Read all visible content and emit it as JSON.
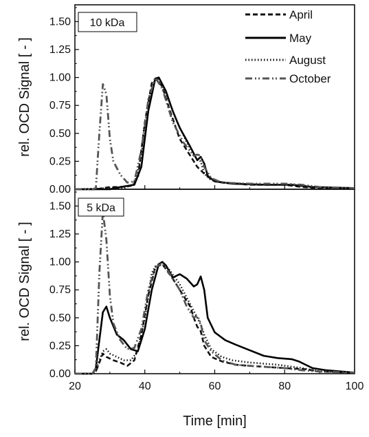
{
  "chart_data": {
    "type": "line",
    "xlabel": "Time [min]",
    "ylabel": "rel. OCD Signal [ - ]",
    "xlim": [
      20,
      100
    ],
    "ylim": [
      0,
      1.65
    ],
    "xticks": [
      "20",
      "40",
      "60",
      "80",
      "100"
    ],
    "yticks": [
      "0.00",
      "0.25",
      "0.50",
      "0.75",
      "1.00",
      "1.25",
      "1.50"
    ],
    "legend": {
      "placement": "top-right",
      "entries": [
        {
          "name": "April",
          "style": "dashed"
        },
        {
          "name": "May",
          "style": "solid"
        },
        {
          "name": "August",
          "style": "dotted"
        },
        {
          "name": "October",
          "style": "dash-dot-dot"
        }
      ]
    },
    "colors": {
      "April": "#111111",
      "May": "#000000",
      "August": "#111111",
      "October": "#555555"
    },
    "panels": [
      {
        "label": "10 kDa",
        "series": [
          {
            "name": "April",
            "points": [
              [
                20,
                0
              ],
              [
                26,
                0
              ],
              [
                28,
                0.01
              ],
              [
                30,
                0.02
              ],
              [
                33,
                0.02
              ],
              [
                36,
                0.03
              ],
              [
                38,
                0.1
              ],
              [
                40,
                0.6
              ],
              [
                42,
                0.95
              ],
              [
                43,
                0.99
              ],
              [
                45,
                0.92
              ],
              [
                47,
                0.72
              ],
              [
                50,
                0.45
              ],
              [
                53,
                0.3
              ],
              [
                55,
                0.2
              ],
              [
                57,
                0.14
              ],
              [
                59,
                0.09
              ],
              [
                62,
                0.06
              ],
              [
                70,
                0.04
              ],
              [
                80,
                0.04
              ],
              [
                85,
                0.02
              ],
              [
                90,
                0.01
              ],
              [
                100,
                0.01
              ]
            ]
          },
          {
            "name": "May",
            "points": [
              [
                20,
                0
              ],
              [
                30,
                0
              ],
              [
                33,
                0.02
              ],
              [
                37,
                0.04
              ],
              [
                39,
                0.2
              ],
              [
                41,
                0.7
              ],
              [
                43,
                0.99
              ],
              [
                44,
                1.0
              ],
              [
                46,
                0.88
              ],
              [
                48,
                0.7
              ],
              [
                50,
                0.55
              ],
              [
                53,
                0.38
              ],
              [
                55,
                0.26
              ],
              [
                56,
                0.29
              ],
              [
                57,
                0.23
              ],
              [
                58,
                0.12
              ],
              [
                60,
                0.07
              ],
              [
                65,
                0.05
              ],
              [
                75,
                0.04
              ],
              [
                82,
                0.04
              ],
              [
                88,
                0.02
              ],
              [
                100,
                0.01
              ]
            ]
          },
          {
            "name": "August",
            "points": [
              [
                20,
                0
              ],
              [
                30,
                0.01
              ],
              [
                34,
                0.01
              ],
              [
                37,
                0.05
              ],
              [
                39,
                0.3
              ],
              [
                41,
                0.8
              ],
              [
                43,
                0.99
              ],
              [
                44,
                0.98
              ],
              [
                46,
                0.86
              ],
              [
                49,
                0.62
              ],
              [
                52,
                0.42
              ],
              [
                54,
                0.3
              ],
              [
                56,
                0.25
              ],
              [
                57,
                0.14
              ],
              [
                59,
                0.08
              ],
              [
                63,
                0.06
              ],
              [
                72,
                0.04
              ],
              [
                82,
                0.04
              ],
              [
                90,
                0.02
              ],
              [
                100,
                0.01
              ]
            ]
          },
          {
            "name": "October",
            "points": [
              [
                20,
                0
              ],
              [
                25,
                0
              ],
              [
                26,
                0.01
              ],
              [
                27,
                0.5
              ],
              [
                28,
                0.94
              ],
              [
                29,
                0.85
              ],
              [
                30,
                0.45
              ],
              [
                31,
                0.25
              ],
              [
                33,
                0.13
              ],
              [
                35,
                0.06
              ],
              [
                37,
                0.07
              ],
              [
                39,
                0.35
              ],
              [
                41,
                0.8
              ],
              [
                43,
                1.0
              ],
              [
                45,
                0.9
              ],
              [
                48,
                0.6
              ],
              [
                51,
                0.42
              ],
              [
                54,
                0.3
              ],
              [
                55,
                0.31
              ],
              [
                56,
                0.3
              ],
              [
                57,
                0.2
              ],
              [
                59,
                0.1
              ],
              [
                62,
                0.06
              ],
              [
                70,
                0.05
              ],
              [
                80,
                0.05
              ],
              [
                85,
                0.04
              ],
              [
                90,
                0.02
              ],
              [
                100,
                0.01
              ]
            ]
          }
        ]
      },
      {
        "label": "5 kDa",
        "series": [
          {
            "name": "April",
            "points": [
              [
                20,
                0
              ],
              [
                25,
                0
              ],
              [
                26,
                0.02
              ],
              [
                27,
                0.1
              ],
              [
                28,
                0.18
              ],
              [
                29,
                0.15
              ],
              [
                31,
                0.12
              ],
              [
                33,
                0.1
              ],
              [
                35,
                0.07
              ],
              [
                37,
                0.12
              ],
              [
                39,
                0.35
              ],
              [
                41,
                0.7
              ],
              [
                43,
                0.95
              ],
              [
                45,
                0.98
              ],
              [
                48,
                0.85
              ],
              [
                51,
                0.7
              ],
              [
                53,
                0.6
              ],
              [
                54,
                0.5
              ],
              [
                55,
                0.42
              ],
              [
                56,
                0.38
              ],
              [
                57,
                0.25
              ],
              [
                59,
                0.15
              ],
              [
                62,
                0.11
              ],
              [
                66,
                0.08
              ],
              [
                70,
                0.07
              ],
              [
                80,
                0.05
              ],
              [
                86,
                0.04
              ],
              [
                90,
                0.02
              ],
              [
                100,
                0.01
              ]
            ]
          },
          {
            "name": "May",
            "points": [
              [
                20,
                0
              ],
              [
                25,
                0
              ],
              [
                26,
                0.05
              ],
              [
                27,
                0.3
              ],
              [
                28,
                0.55
              ],
              [
                29,
                0.6
              ],
              [
                30,
                0.5
              ],
              [
                32,
                0.35
              ],
              [
                34,
                0.3
              ],
              [
                36,
                0.22
              ],
              [
                38,
                0.2
              ],
              [
                40,
                0.4
              ],
              [
                42,
                0.75
              ],
              [
                44,
                0.98
              ],
              [
                45,
                1.0
              ],
              [
                46,
                0.97
              ],
              [
                48,
                0.86
              ],
              [
                50,
                0.89
              ],
              [
                52,
                0.85
              ],
              [
                54,
                0.78
              ],
              [
                55,
                0.8
              ],
              [
                56,
                0.87
              ],
              [
                57,
                0.75
              ],
              [
                58,
                0.5
              ],
              [
                60,
                0.37
              ],
              [
                63,
                0.3
              ],
              [
                66,
                0.26
              ],
              [
                70,
                0.21
              ],
              [
                74,
                0.16
              ],
              [
                78,
                0.14
              ],
              [
                82,
                0.13
              ],
              [
                84,
                0.11
              ],
              [
                86,
                0.08
              ],
              [
                88,
                0.05
              ],
              [
                92,
                0.03
              ],
              [
                100,
                0.01
              ]
            ]
          },
          {
            "name": "August",
            "points": [
              [
                20,
                0
              ],
              [
                25,
                0
              ],
              [
                26,
                0.02
              ],
              [
                27,
                0.12
              ],
              [
                28,
                0.2
              ],
              [
                29,
                0.22
              ],
              [
                30,
                0.18
              ],
              [
                32,
                0.15
              ],
              [
                34,
                0.12
              ],
              [
                36,
                0.12
              ],
              [
                38,
                0.2
              ],
              [
                40,
                0.5
              ],
              [
                42,
                0.9
              ],
              [
                43,
                0.96
              ],
              [
                45,
                1.0
              ],
              [
                47,
                0.93
              ],
              [
                50,
                0.8
              ],
              [
                53,
                0.62
              ],
              [
                55,
                0.5
              ],
              [
                56,
                0.44
              ],
              [
                57,
                0.35
              ],
              [
                59,
                0.22
              ],
              [
                62,
                0.15
              ],
              [
                65,
                0.12
              ],
              [
                70,
                0.1
              ],
              [
                78,
                0.08
              ],
              [
                85,
                0.05
              ],
              [
                90,
                0.02
              ],
              [
                100,
                0.01
              ]
            ]
          },
          {
            "name": "October",
            "points": [
              [
                20,
                0
              ],
              [
                25,
                0
              ],
              [
                26,
                0.05
              ],
              [
                27,
                0.9
              ],
              [
                28,
                1.45
              ],
              [
                29,
                1.2
              ],
              [
                30,
                0.7
              ],
              [
                31,
                0.45
              ],
              [
                33,
                0.3
              ],
              [
                35,
                0.22
              ],
              [
                37,
                0.23
              ],
              [
                39,
                0.4
              ],
              [
                41,
                0.75
              ],
              [
                43,
                0.95
              ],
              [
                45,
                0.99
              ],
              [
                47,
                0.9
              ],
              [
                50,
                0.75
              ],
              [
                52,
                0.6
              ],
              [
                54,
                0.5
              ],
              [
                55,
                0.52
              ],
              [
                56,
                0.45
              ],
              [
                57,
                0.3
              ],
              [
                59,
                0.2
              ],
              [
                62,
                0.12
              ],
              [
                66,
                0.08
              ],
              [
                70,
                0.07
              ],
              [
                80,
                0.05
              ],
              [
                85,
                0.03
              ],
              [
                90,
                0.02
              ],
              [
                100,
                0.01
              ]
            ]
          }
        ]
      }
    ]
  }
}
